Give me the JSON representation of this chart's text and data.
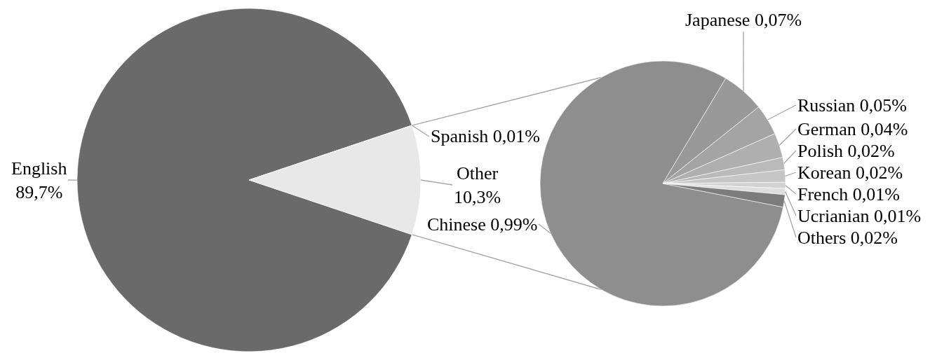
{
  "chart_data": [
    {
      "type": "pie",
      "categories": [
        "English",
        "Spanish",
        "Other"
      ],
      "values": [
        89.7,
        0.01,
        10.3
      ],
      "value_labels": [
        "89,7%",
        "0,01%",
        "10,3%"
      ],
      "colors": [
        "#6a6a6a",
        "#d9d9d9",
        "#e8e8e8"
      ]
    },
    {
      "type": "pie",
      "categories": [
        "Chinese",
        "Japanese",
        "Russian",
        "German",
        "Polish",
        "Korean",
        "French",
        "Ucrianian",
        "Others"
      ],
      "values": [
        0.99,
        0.07,
        0.05,
        0.04,
        0.02,
        0.02,
        0.01,
        0.01,
        0.02
      ],
      "value_labels": [
        "0,99%",
        "0,07%",
        "0,05%",
        "0,04%",
        "0,02%",
        "0,02%",
        "0,01%",
        "0,01%",
        "0,02%"
      ],
      "colors": [
        "#8e8e8e",
        "#999999",
        "#a4a4a4",
        "#afafaf",
        "#bababa",
        "#c6c6c6",
        "#d2d2d2",
        "#dedede",
        "#7c7c7c"
      ]
    }
  ]
}
